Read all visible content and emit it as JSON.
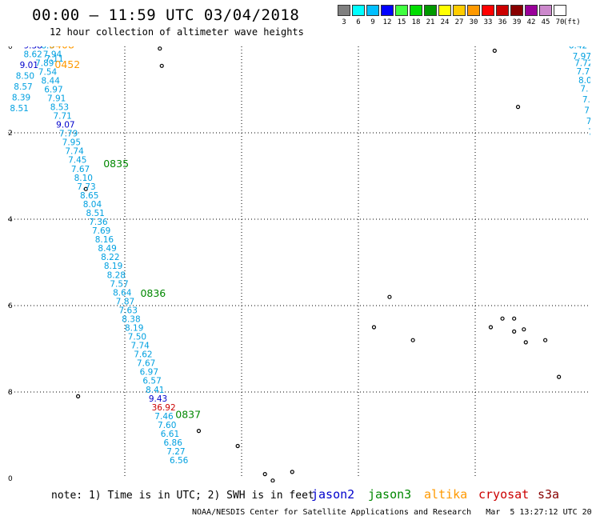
{
  "header": {
    "title": "00:00 – 11:59 UTC 03/04/2018",
    "subtitle": "12 hour collection of altimeter wave heights"
  },
  "colorbar": {
    "unit": "(ft)",
    "items": [
      {
        "color": "#808080",
        "label": "3"
      },
      {
        "color": "#00ffff",
        "label": "6"
      },
      {
        "color": "#00bfff",
        "label": "9"
      },
      {
        "color": "#0000ff",
        "label": "12"
      },
      {
        "color": "#40ff40",
        "label": "15"
      },
      {
        "color": "#00dd00",
        "label": "18"
      },
      {
        "color": "#009900",
        "label": "21"
      },
      {
        "color": "#ffff00",
        "label": "24"
      },
      {
        "color": "#ffcc00",
        "label": "27"
      },
      {
        "color": "#ff9900",
        "label": "30"
      },
      {
        "color": "#ff0000",
        "label": "33"
      },
      {
        "color": "#cc0000",
        "label": "36"
      },
      {
        "color": "#880000",
        "label": "39"
      },
      {
        "color": "#990099",
        "label": "42"
      },
      {
        "color": "#cc88cc",
        "label": "45"
      },
      {
        "color": "#ffffff",
        "label": "70"
      }
    ]
  },
  "map": {
    "lon_range": [
      -165,
      -150
    ],
    "lat_range": [
      -20,
      -10
    ],
    "x_ticks": [
      "-165",
      "-162",
      "-159",
      "-156",
      "-153",
      "-15"
    ],
    "y_ticks": [
      "-10",
      "-12",
      "-14",
      "-16",
      "-18",
      "-20"
    ],
    "colors": {
      "jason2": "#0000cc",
      "jason3": "#008800",
      "altika": "#ff9900",
      "cryosat": "#cc0000",
      "default": "#00a0e0"
    },
    "time_labels": [
      {
        "text": "0834",
        "lon": -163.5,
        "lat": -10.0,
        "sat": "jason3"
      },
      {
        "text": "0452",
        "lon": -163.8,
        "lat": -10.5,
        "sat": "altika"
      },
      {
        "text": "0835",
        "lon": -162.55,
        "lat": -12.8,
        "sat": "jason3"
      },
      {
        "text": "0836",
        "lon": -161.6,
        "lat": -15.8,
        "sat": "jason3"
      },
      {
        "text": "0837",
        "lon": -160.7,
        "lat": -18.6,
        "sat": "jason3"
      }
    ],
    "track_main": {
      "start_lon": -164.3,
      "start_lat": -10.45,
      "end_lon": -160.85,
      "end_lat": -19.65,
      "values": [
        "7.89",
        "7.54",
        "8.44",
        "6.97",
        "7.91",
        "8.53",
        "7.71",
        "9.07",
        "7.79",
        "7.95",
        "7.74",
        "7.45",
        "7.67",
        "8.10",
        "7.73",
        "8.65",
        "8.04",
        "8.51",
        "7.36",
        "7.69",
        "8.16",
        "8.49",
        "8.22",
        "8.19",
        "8.28",
        "7.57",
        "8.64",
        "7.87",
        "7.63",
        "8.38",
        "8.19",
        "7.50",
        "7.74",
        "7.62",
        "7.67",
        "6.97",
        "6.57",
        "8.41",
        "9.43",
        "36.92",
        "7.46",
        "7.60",
        "6.61",
        "6.86",
        "7.27",
        "6.56"
      ],
      "sats": {
        "7": "jason2",
        "38": "jason2",
        "39": "cryosat"
      }
    },
    "track_left": [
      {
        "text": "9.38",
        "lon": -164.6,
        "lat": -10.05,
        "sat": "jason2"
      },
      {
        "text": "8.62",
        "lon": -164.6,
        "lat": -10.25,
        "sat": "default"
      },
      {
        "text": "9.01",
        "lon": -164.7,
        "lat": -10.5,
        "sat": "jason2"
      },
      {
        "text": "8.50",
        "lon": -164.8,
        "lat": -10.75,
        "sat": "default"
      },
      {
        "text": "8.57",
        "lon": -164.85,
        "lat": -11.0,
        "sat": "default"
      },
      {
        "text": "8.39",
        "lon": -164.9,
        "lat": -11.25,
        "sat": "default"
      },
      {
        "text": "8.51",
        "lon": -164.95,
        "lat": -11.5,
        "sat": "default"
      }
    ],
    "track_top_extra": [
      {
        "text": "8.9",
        "lon": -164.15,
        "lat": -10.05,
        "sat": "default"
      },
      {
        "text": "7.94",
        "lon": -164.1,
        "lat": -10.25,
        "sat": "default"
      },
      {
        "text": "7.11",
        "lon": -164.05,
        "lat": -10.35,
        "sat": "default"
      },
      {
        "text": "0408",
        "lon": -163.95,
        "lat": -10.05,
        "sat": "altika"
      }
    ],
    "track_right": [
      {
        "text": "6.42",
        "lon": -150.6,
        "lat": -10.05
      },
      {
        "text": "7.97",
        "lon": -150.5,
        "lat": -10.3
      },
      {
        "text": "7.72",
        "lon": -150.45,
        "lat": -10.45
      },
      {
        "text": "7.72",
        "lon": -150.4,
        "lat": -10.65
      },
      {
        "text": "8.0",
        "lon": -150.35,
        "lat": -10.85
      },
      {
        "text": "7.",
        "lon": -150.3,
        "lat": -11.05
      },
      {
        "text": "7.",
        "lon": -150.25,
        "lat": -11.3
      },
      {
        "text": "7.",
        "lon": -150.2,
        "lat": -11.55
      },
      {
        "text": "7.",
        "lon": -150.15,
        "lat": -11.8
      },
      {
        "text": "7",
        "lon": -150.1,
        "lat": -12.05
      }
    ],
    "islands": [
      {
        "lon": -163.0,
        "lat": -13.3
      },
      {
        "lon": -161.1,
        "lat": -10.05
      },
      {
        "lon": -161.05,
        "lat": -10.45
      },
      {
        "lon": -163.2,
        "lat": -18.1
      },
      {
        "lon": -160.1,
        "lat": -18.9
      },
      {
        "lon": -159.1,
        "lat": -19.25
      },
      {
        "lon": -158.4,
        "lat": -19.9
      },
      {
        "lon": -158.2,
        "lat": -20.05
      },
      {
        "lon": -157.7,
        "lat": -19.85
      },
      {
        "lon": -155.2,
        "lat": -15.8
      },
      {
        "lon": -155.6,
        "lat": -16.5
      },
      {
        "lon": -154.6,
        "lat": -16.8
      },
      {
        "lon": -152.5,
        "lat": -10.1
      },
      {
        "lon": -151.9,
        "lat": -11.4
      },
      {
        "lon": -152.3,
        "lat": -16.3
      },
      {
        "lon": -152.0,
        "lat": -16.3
      },
      {
        "lon": -152.0,
        "lat": -16.6
      },
      {
        "lon": -151.75,
        "lat": -16.55
      },
      {
        "lon": -151.7,
        "lat": -16.85
      },
      {
        "lon": -151.2,
        "lat": -16.8
      },
      {
        "lon": -150.85,
        "lat": -17.65
      },
      {
        "lon": -152.6,
        "lat": -16.5
      }
    ]
  },
  "legend": {
    "note": "note: 1) Time is in UTC; 2) SWH is in feet",
    "items": [
      {
        "label": "jason2",
        "color": "#0000cc"
      },
      {
        "label": "jason3",
        "color": "#008800"
      },
      {
        "label": "altika",
        "color": "#ff9900"
      },
      {
        "label": "cryosat",
        "color": "#cc0000"
      },
      {
        "label": "s3a",
        "color": "#880000"
      }
    ]
  },
  "credit": "NOAA/NESDIS Center for Satellite Applications and Research   Mar  5 13:27:12 UTC 2018"
}
